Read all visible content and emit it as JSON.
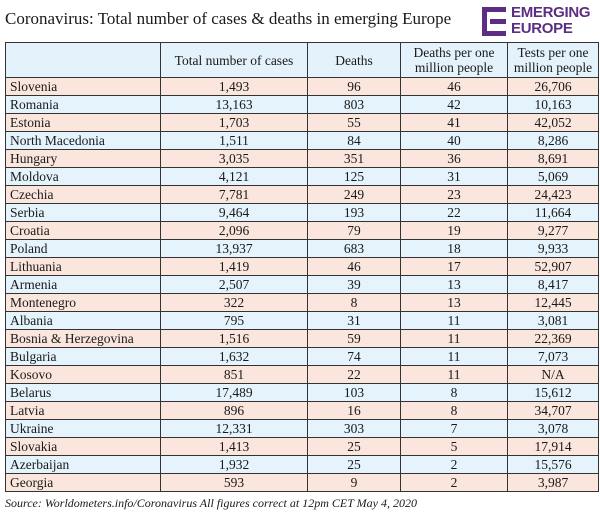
{
  "title": "Coronavirus: Total number of cases & deaths in emerging Europe",
  "logo": {
    "line1": "EMERGING",
    "line2": "EUROPE",
    "color": "#5c2e83"
  },
  "source": "Source: Worldometers.info/Coronavirus All figures correct at 12pm CET May 4, 2020",
  "chart_data": {
    "type": "table",
    "columns": [
      "",
      "Total number of cases",
      "Deaths",
      "Deaths per one million people",
      "Tests per one million people"
    ],
    "rows": [
      [
        "Slovenia",
        "1,493",
        "96",
        "46",
        "26,706"
      ],
      [
        "Romania",
        "13,163",
        "803",
        "42",
        "10,163"
      ],
      [
        "Estonia",
        "1,703",
        "55",
        "41",
        "42,052"
      ],
      [
        "North Macedonia",
        "1,511",
        "84",
        "40",
        "8,286"
      ],
      [
        "Hungary",
        "3,035",
        "351",
        "36",
        "8,691"
      ],
      [
        "Moldova",
        "4,121",
        "125",
        "31",
        "5,069"
      ],
      [
        "Czechia",
        "7,781",
        "249",
        "23",
        "24,423"
      ],
      [
        "Serbia",
        "9,464",
        "193",
        "22",
        "11,664"
      ],
      [
        "Croatia",
        "2,096",
        "79",
        "19",
        "9,277"
      ],
      [
        "Poland",
        "13,937",
        "683",
        "18",
        "9,933"
      ],
      [
        "Lithuania",
        "1,419",
        "46",
        "17",
        "52,907"
      ],
      [
        "Armenia",
        "2,507",
        "39",
        "13",
        "8,417"
      ],
      [
        "Montenegro",
        "322",
        "8",
        "13",
        "12,445"
      ],
      [
        "Albania",
        "795",
        "31",
        "11",
        "3,081"
      ],
      [
        "Bosnia & Herzegovina",
        "1,516",
        "59",
        "11",
        "22,369"
      ],
      [
        "Bulgaria",
        "1,632",
        "74",
        "11",
        "7,073"
      ],
      [
        "Kosovo",
        "851",
        "22",
        "11",
        "N/A"
      ],
      [
        "Belarus",
        "17,489",
        "103",
        "8",
        "15,612"
      ],
      [
        "Latvia",
        "896",
        "16",
        "8",
        "34,707"
      ],
      [
        "Ukraine",
        "12,331",
        "303",
        "7",
        "3,078"
      ],
      [
        "Slovakia",
        "1,413",
        "25",
        "5",
        "17,914"
      ],
      [
        "Azerbaijan",
        "1,932",
        "25",
        "2",
        "15,576"
      ],
      [
        "Georgia",
        "593",
        "9",
        "2",
        "3,987"
      ]
    ],
    "row_colors": [
      "#fbe6dd",
      "#e4f3fc"
    ]
  }
}
